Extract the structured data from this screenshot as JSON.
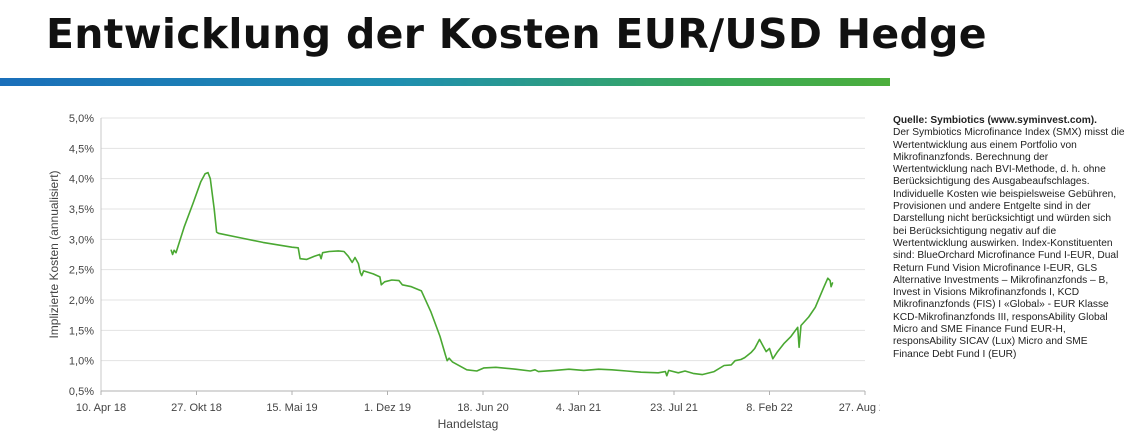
{
  "page": {
    "title": "Entwicklung der Kosten EUR/USD Hedge",
    "bar_colors": [
      "#1a6fba",
      "#4cae3c"
    ]
  },
  "sidebar": {
    "source": "Quelle: Symbiotics (www.syminvest.com).",
    "text": "Der Symbiotics Microfinance Index (SMX) misst die Wertentwicklung aus einem Portfolio von Mikrofinanzfonds. Berechnung der Wertentwicklung nach BVI-Methode, d. h. ohne Berücksichtigung des Ausgabeaufschlages. Individuelle Kosten wie beispielsweise Gebühren, Provisionen und andere Entgelte sind in der Darstellung nicht berücksichtigt und würden sich bei Berücksichtigung negativ auf die Wertentwicklung auswirken. Index-Konstituenten sind: BlueOrchard Microfinance Fund I-EUR, Dual Return Fund Vision Microfinance I-EUR, GLS Alternative Investments – Mikrofinanzfonds – B, Invest in Visions Mikrofinanzfonds I, KCD Mikrofinanzfonds (FIS) I «Global» - EUR Klasse KCD-Mikrofinanzfonds III, responsAbility Global Micro and SME Finance Fund EUR-H, responsAbility SICAV (Lux) Micro and SME Finance Debt Fund I (EUR)"
  },
  "chart_data": {
    "type": "line",
    "title": "",
    "xlabel": "Handelstag",
    "ylabel": "Implizierte Kosten (annualisiert)",
    "ylim": [
      0.5,
      5.0
    ],
    "xlim": [
      "2018-04-10",
      "2022-08-27"
    ],
    "grid": true,
    "line_color": "#4aa832",
    "x_ticks": [
      "2018-04-10",
      "2018-10-27",
      "2019-05-15",
      "2019-12-01",
      "2020-06-18",
      "2021-01-04",
      "2021-07-23",
      "2022-02-08",
      "2022-08-27"
    ],
    "x_tick_labels": [
      "10. Apr 18",
      "27. Okt 18",
      "15. Mai 19",
      "1. Dez 19",
      "18. Jun 20",
      "4. Jan 21",
      "23. Jul 21",
      "8. Feb 22",
      "27. Aug 22"
    ],
    "y_ticks": [
      0.5,
      1.0,
      1.5,
      2.0,
      2.5,
      3.0,
      3.5,
      4.0,
      4.5,
      5.0
    ],
    "y_tick_labels": [
      "0,5%",
      "1,0%",
      "1,5%",
      "2,0%",
      "2,5%",
      "3,0%",
      "3,5%",
      "4,0%",
      "4,5%",
      "5,0%"
    ],
    "series": [
      {
        "points": [
          [
            "2018-09-04",
            2.82
          ],
          [
            "2018-09-07",
            2.75
          ],
          [
            "2018-09-10",
            2.82
          ],
          [
            "2018-09-14",
            2.78
          ],
          [
            "2018-10-01",
            3.2
          ],
          [
            "2018-10-20",
            3.6
          ],
          [
            "2018-11-05",
            3.95
          ],
          [
            "2018-11-14",
            4.08
          ],
          [
            "2018-11-20",
            4.1
          ],
          [
            "2018-11-25",
            4.0
          ],
          [
            "2018-12-03",
            3.5
          ],
          [
            "2018-12-08",
            3.12
          ],
          [
            "2018-12-12",
            3.1
          ],
          [
            "2019-01-30",
            3.02
          ],
          [
            "2019-03-15",
            2.95
          ],
          [
            "2019-05-15",
            2.87
          ],
          [
            "2019-05-28",
            2.86
          ],
          [
            "2019-06-01",
            2.68
          ],
          [
            "2019-06-15",
            2.67
          ],
          [
            "2019-07-01",
            2.72
          ],
          [
            "2019-07-12",
            2.75
          ],
          [
            "2019-07-15",
            2.68
          ],
          [
            "2019-07-18",
            2.78
          ],
          [
            "2019-08-01",
            2.8
          ],
          [
            "2019-08-20",
            2.81
          ],
          [
            "2019-09-01",
            2.8
          ],
          [
            "2019-09-10",
            2.72
          ],
          [
            "2019-09-18",
            2.62
          ],
          [
            "2019-09-24",
            2.7
          ],
          [
            "2019-10-01",
            2.6
          ],
          [
            "2019-10-05",
            2.45
          ],
          [
            "2019-10-08",
            2.4
          ],
          [
            "2019-10-12",
            2.48
          ],
          [
            "2019-11-01",
            2.43
          ],
          [
            "2019-11-15",
            2.38
          ],
          [
            "2019-11-18",
            2.25
          ],
          [
            "2019-11-25",
            2.3
          ],
          [
            "2019-12-10",
            2.33
          ],
          [
            "2019-12-25",
            2.32
          ],
          [
            "2020-01-01",
            2.25
          ],
          [
            "2020-01-20",
            2.22
          ],
          [
            "2020-02-10",
            2.15
          ],
          [
            "2020-03-01",
            1.8
          ],
          [
            "2020-03-20",
            1.4
          ],
          [
            "2020-03-31",
            1.1
          ],
          [
            "2020-04-04",
            1.0
          ],
          [
            "2020-04-08",
            1.04
          ],
          [
            "2020-04-15",
            0.98
          ],
          [
            "2020-05-15",
            0.85
          ],
          [
            "2020-06-05",
            0.83
          ],
          [
            "2020-06-20",
            0.88
          ],
          [
            "2020-07-15",
            0.89
          ],
          [
            "2020-08-25",
            0.86
          ],
          [
            "2020-09-25",
            0.83
          ],
          [
            "2020-10-05",
            0.85
          ],
          [
            "2020-10-12",
            0.82
          ],
          [
            "2020-11-15",
            0.84
          ],
          [
            "2020-12-15",
            0.86
          ],
          [
            "2021-01-15",
            0.84
          ],
          [
            "2021-02-15",
            0.86
          ],
          [
            "2021-03-15",
            0.85
          ],
          [
            "2021-04-15",
            0.83
          ],
          [
            "2021-05-15",
            0.81
          ],
          [
            "2021-06-20",
            0.8
          ],
          [
            "2021-07-05",
            0.82
          ],
          [
            "2021-07-08",
            0.75
          ],
          [
            "2021-07-12",
            0.84
          ],
          [
            "2021-08-01",
            0.8
          ],
          [
            "2021-08-15",
            0.83
          ],
          [
            "2021-09-01",
            0.79
          ],
          [
            "2021-09-20",
            0.77
          ],
          [
            "2021-10-15",
            0.82
          ],
          [
            "2021-11-05",
            0.92
          ],
          [
            "2021-11-20",
            0.93
          ],
          [
            "2021-11-28",
            1.0
          ],
          [
            "2021-12-10",
            1.02
          ],
          [
            "2021-12-18",
            1.05
          ],
          [
            "2022-01-01",
            1.14
          ],
          [
            "2022-01-08",
            1.2
          ],
          [
            "2022-01-18",
            1.35
          ],
          [
            "2022-01-25",
            1.25
          ],
          [
            "2022-02-01",
            1.15
          ],
          [
            "2022-02-08",
            1.2
          ],
          [
            "2022-02-15",
            1.03
          ],
          [
            "2022-02-25",
            1.15
          ],
          [
            "2022-03-10",
            1.28
          ],
          [
            "2022-03-25",
            1.4
          ],
          [
            "2022-04-08",
            1.55
          ],
          [
            "2022-04-11",
            1.22
          ],
          [
            "2022-04-15",
            1.58
          ],
          [
            "2022-05-01",
            1.72
          ],
          [
            "2022-05-15",
            1.88
          ],
          [
            "2022-06-01",
            2.2
          ],
          [
            "2022-06-10",
            2.36
          ],
          [
            "2022-06-15",
            2.32
          ],
          [
            "2022-06-17",
            2.22
          ],
          [
            "2022-06-20",
            2.28
          ]
        ]
      }
    ]
  }
}
